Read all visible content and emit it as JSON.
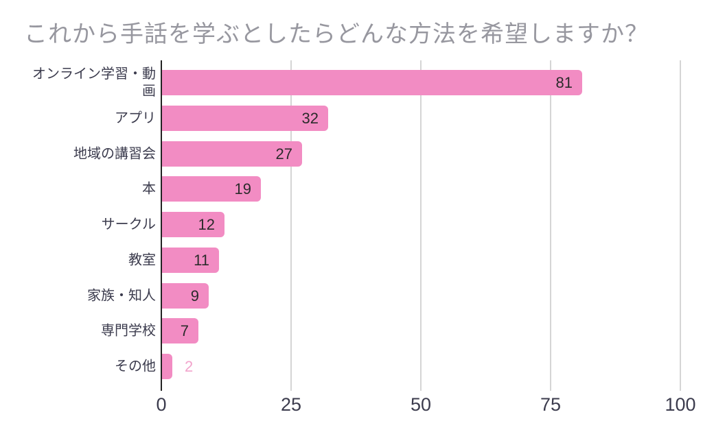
{
  "chart_data": {
    "type": "bar",
    "orientation": "horizontal",
    "title": "これから手話を学ぶとしたらどんな方法を希望しますか？",
    "categories": [
      "オンライン学習・動画",
      "アプリ",
      "地域の講習会",
      "本",
      "サークル",
      "教室",
      "家族・知人",
      "専門学校",
      "その他"
    ],
    "values": [
      81,
      32,
      27,
      19,
      12,
      11,
      9,
      7,
      2
    ],
    "xlabel": "",
    "ylabel": "",
    "xlim": [
      0,
      100
    ],
    "x_ticks": [
      0,
      25,
      50,
      75,
      100
    ],
    "grid": "vertical",
    "legend": "none",
    "value_labels": "shown",
    "styles": {
      "background": "#FFFFFF",
      "bar_color": "#F28CC3",
      "title_color": "#97979F",
      "category_label_color": "#3B3B4D",
      "tick_label_color": "#3B3B4D",
      "value_label_inside_color": "#2B2B2B",
      "value_label_outside_color": "#F2A4CC",
      "gridline_color": "#D5D5D5",
      "axis_line_color": "#222222"
    }
  }
}
